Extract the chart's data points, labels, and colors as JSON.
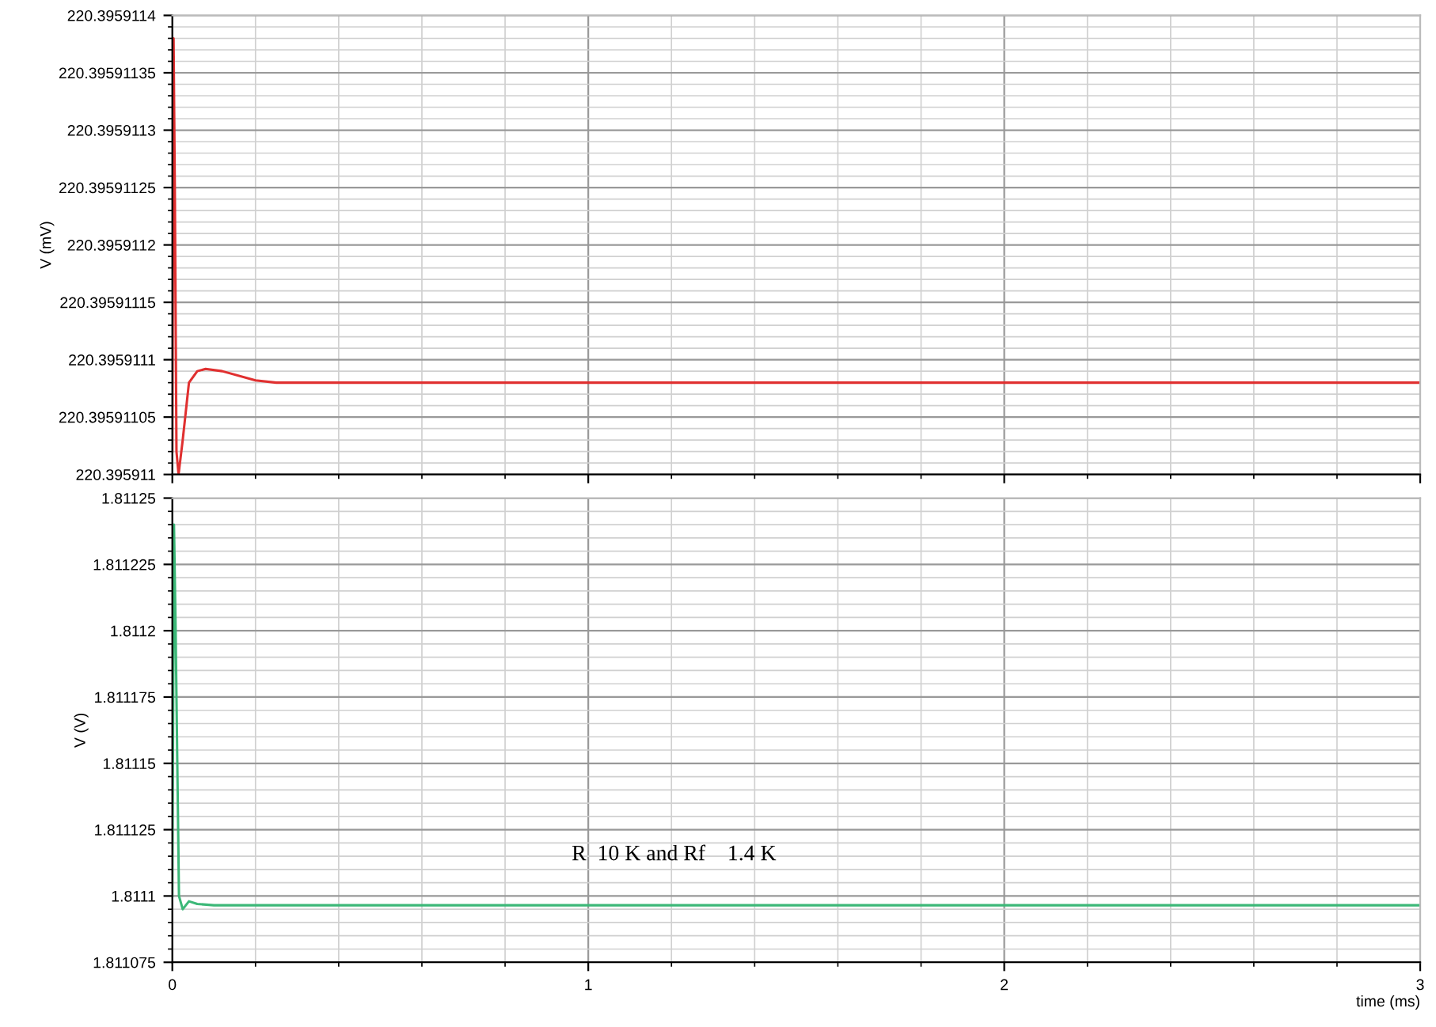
{
  "chart_data": [
    {
      "type": "line",
      "ylabel": "V (mV)",
      "xlim": [
        0,
        3
      ],
      "xticks": [
        0,
        1,
        2,
        3
      ],
      "ylim": [
        220.395911,
        220.3959114
      ],
      "yticks": [
        220.395911,
        220.39591105,
        220.3959111,
        220.39591115,
        220.3959112,
        220.39591125,
        220.3959113,
        220.39591135,
        220.3959114
      ],
      "tick_labels": "y",
      "grid": true,
      "series": [
        {
          "color": "#e03030",
          "x": [
            0.0,
            0.003,
            0.006,
            0.01,
            0.015,
            0.025,
            0.04,
            0.06,
            0.08,
            0.12,
            0.2,
            0.25,
            3.0
          ],
          "values": [
            220.39591102,
            220.39591138,
            220.39591125,
            220.39591102,
            220.395911,
            220.39591103,
            220.39591108,
            220.39591109,
            220.395911092,
            220.39591109,
            220.395911082,
            220.39591108,
            220.39591108
          ]
        }
      ]
    },
    {
      "type": "line",
      "ylabel": "V (V)",
      "xlabel": "time (ms)",
      "xlim": [
        0,
        3
      ],
      "xticks": [
        0,
        1,
        2,
        3
      ],
      "ylim": [
        1.811075,
        1.81125
      ],
      "yticks": [
        1.811075,
        1.8111,
        1.811125,
        1.81115,
        1.811175,
        1.8112,
        1.811225,
        1.81125
      ],
      "grid": true,
      "annotations": [
        "R  10 K and Rf    1.4 K"
      ],
      "series": [
        {
          "color": "#3cb878",
          "x": [
            0.0,
            0.004,
            0.008,
            0.012,
            0.016,
            0.025,
            0.04,
            0.06,
            0.1,
            3.0
          ],
          "values": [
            1.8111,
            1.81124,
            1.8112,
            1.81115,
            1.8111,
            1.811095,
            1.811098,
            1.811097,
            1.8110965,
            1.8110965
          ]
        }
      ]
    }
  ]
}
